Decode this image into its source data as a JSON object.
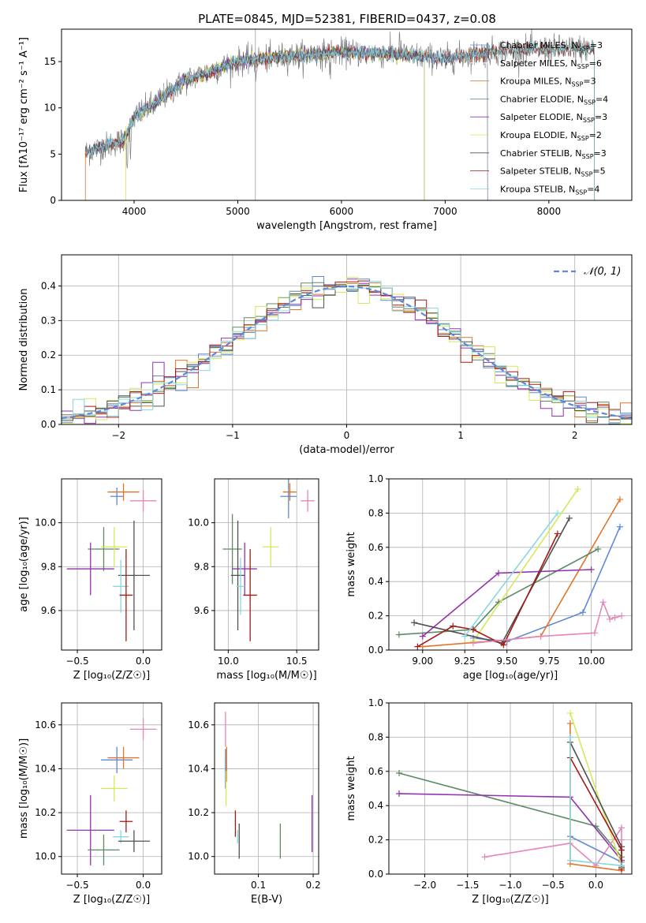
{
  "colors": {
    "chabrier_miles": "#5f89d6",
    "salpeter_miles": "#ffffff",
    "kroupa_miles": "#e0762a",
    "chabrier_elodie": "#5b8a63",
    "salpeter_elodie": "#9332b0",
    "kroupa_elodie": "#d5e85a",
    "chabrier_stelib": "#505050",
    "salpeter_stelib": "#a51a14",
    "kroupa_stelib": "#88d8df",
    "kroupa_extra": "#e587b8"
  },
  "chart_data": [
    {
      "type": "line",
      "title": "PLATE=0845, MJD=52381, FIBERID=0437, z=0.08",
      "xlabel": "wavelength [Angstrom, rest frame]",
      "ylabel": "Flux [fλ10⁻¹⁷ erg cm⁻² s⁻¹ A⁻¹]",
      "xlim": [
        3300,
        8800
      ],
      "ylim": [
        0,
        18.5
      ],
      "xticks": [
        "4000",
        "5000",
        "6000",
        "7000",
        "8000"
      ],
      "yticks": [
        "0",
        "5",
        "10",
        "15"
      ],
      "legend_position": "right",
      "legend": [
        {
          "label": "Chabrier MILES, N",
          "sub": "SSP",
          "suffix": "=3"
        },
        {
          "label": "Salpeter MILES, N",
          "sub": "SSP",
          "suffix": "=6"
        },
        {
          "label": "Kroupa MILES, N",
          "sub": "SSP",
          "suffix": "=3"
        },
        {
          "label": "Chabrier ELODIE, N",
          "sub": "SSP",
          "suffix": "=4"
        },
        {
          "label": "Salpeter ELODIE, N",
          "sub": "SSP",
          "suffix": "=3"
        },
        {
          "label": "Kroupa ELODIE, N",
          "sub": "SSP",
          "suffix": "=2"
        },
        {
          "label": "Chabrier STELIB, N",
          "sub": "SSP",
          "suffix": "=3"
        },
        {
          "label": "Salpeter STELIB, N",
          "sub": "SSP",
          "suffix": "=5"
        },
        {
          "label": "Kroupa STELIB, N",
          "sub": "SSP",
          "suffix": "=4"
        }
      ],
      "continuum": {
        "x": [
          3550,
          3700,
          3900,
          4000,
          4200,
          4500,
          5000,
          5500,
          6000,
          6500,
          7000,
          7400,
          7600,
          8200
        ],
        "y": [
          5.2,
          5.8,
          6.5,
          9.0,
          10.5,
          13.0,
          15.0,
          15.6,
          16.0,
          15.8,
          15.3,
          16.0,
          16.2,
          16.4
        ]
      }
    },
    {
      "type": "line",
      "xlabel": "(data-model)/error",
      "ylabel": "Normed distribution",
      "xlim": [
        -2.5,
        2.5
      ],
      "ylim": [
        0,
        0.49
      ],
      "xticks": [
        "−2",
        "−1",
        "0",
        "1",
        "2"
      ],
      "yticks": [
        "0.0",
        "0.1",
        "0.2",
        "0.3",
        "0.4"
      ],
      "legend_position": "top-right",
      "legend_label": "𝒩(0, 1)",
      "bin_width": 0.1
    },
    {
      "type": "scatter",
      "xlabel": "Z [log₁₀(Z/Z☉)]",
      "ylabel": "age  [log₁₀(age/yr)]",
      "xlim": [
        -0.62,
        0.14
      ],
      "ylim": [
        9.42,
        10.2
      ],
      "xticks": [
        "−0.5",
        "0.0"
      ],
      "yticks": [
        "9.6",
        "9.8",
        "10.0"
      ],
      "points": [
        {
          "c": "chabrier_miles",
          "x": -0.2,
          "xe": 0.05,
          "y": 10.12,
          "ye": 0.04
        },
        {
          "c": "kroupa_miles",
          "x": -0.15,
          "xe": 0.12,
          "y": 10.14,
          "ye": 0.04
        },
        {
          "c": "kroupa_extra",
          "x": 0.0,
          "xe": 0.1,
          "y": 10.1,
          "ye": 0.05
        },
        {
          "c": "chabrier_elodie",
          "x": -0.3,
          "xe": 0.12,
          "y": 9.88,
          "ye": 0.1
        },
        {
          "c": "kroupa_elodie",
          "x": -0.22,
          "xe": 0.1,
          "y": 9.89,
          "ye": 0.09
        },
        {
          "c": "salpeter_elodie",
          "x": -0.4,
          "xe": 0.18,
          "y": 9.79,
          "ye": 0.12
        },
        {
          "c": "chabrier_stelib",
          "x": -0.07,
          "xe": 0.12,
          "y": 9.76,
          "ye": 0.25
        },
        {
          "c": "kroupa_stelib",
          "x": -0.17,
          "xe": 0.06,
          "y": 9.71,
          "ye": 0.12
        },
        {
          "c": "salpeter_stelib",
          "x": -0.13,
          "xe": 0.05,
          "y": 9.67,
          "ye": 0.21
        }
      ]
    },
    {
      "type": "scatter",
      "xlabel": "mass [log₁₀(M/M☉)]",
      "xlim": [
        9.9,
        10.66
      ],
      "ylim": [
        9.42,
        10.2
      ],
      "xticks": [
        "10.0",
        "10.5"
      ],
      "yticks": [
        "9.6",
        "9.8",
        "10.0"
      ],
      "points": [
        {
          "c": "kroupa_miles",
          "x": 10.45,
          "xe": 0.05,
          "y": 10.14,
          "ye": 0.04
        },
        {
          "c": "chabrier_miles",
          "x": 10.44,
          "xe": 0.06,
          "y": 10.12,
          "ye": 0.1
        },
        {
          "c": "kroupa_extra",
          "x": 10.58,
          "xe": 0.05,
          "y": 10.1,
          "ye": 0.05
        },
        {
          "c": "chabrier_elodie",
          "x": 10.03,
          "xe": 0.07,
          "y": 9.88,
          "ye": 0.16
        },
        {
          "c": "kroupa_elodie",
          "x": 10.31,
          "xe": 0.06,
          "y": 9.89,
          "ye": 0.09
        },
        {
          "c": "salpeter_elodie",
          "x": 10.12,
          "xe": 0.09,
          "y": 9.79,
          "ye": 0.12
        },
        {
          "c": "chabrier_stelib",
          "x": 10.07,
          "xe": 0.05,
          "y": 9.76,
          "ye": 0.25
        },
        {
          "c": "kroupa_stelib",
          "x": 10.09,
          "xe": 0.03,
          "y": 9.71,
          "ye": 0.13
        },
        {
          "c": "salpeter_stelib",
          "x": 10.16,
          "xe": 0.05,
          "y": 9.67,
          "ye": 0.21
        }
      ]
    },
    {
      "type": "line",
      "xlabel": "age  [log₁₀(age/yr)]",
      "ylabel": "mass weight",
      "xlim": [
        8.8,
        10.24
      ],
      "ylim": [
        0,
        1.0
      ],
      "xticks": [
        "9.00",
        "9.25",
        "9.50",
        "9.75",
        "10.00"
      ],
      "yticks": [
        "0.0",
        "0.2",
        "0.4",
        "0.6",
        "0.8",
        "1.0"
      ],
      "series": [
        {
          "c": "chabrier_miles",
          "x": [
            9.3,
            9.5,
            9.95,
            10.17
          ],
          "y": [
            0.07,
            0.05,
            0.22,
            0.72
          ]
        },
        {
          "c": "kroupa_miles",
          "x": [
            9.0,
            9.5,
            9.7,
            10.17
          ],
          "y": [
            0.02,
            0.06,
            0.08,
            0.88
          ]
        },
        {
          "c": "chabrier_elodie",
          "x": [
            8.86,
            9.3,
            9.45,
            10.04
          ],
          "y": [
            0.09,
            0.12,
            0.28,
            0.59
          ]
        },
        {
          "c": "salpeter_elodie",
          "x": [
            9.0,
            9.45,
            10.0
          ],
          "y": [
            0.08,
            0.45,
            0.47
          ]
        },
        {
          "c": "kroupa_elodie",
          "x": [
            9.3,
            9.92
          ],
          "y": [
            0.05,
            0.94
          ]
        },
        {
          "c": "chabrier_stelib",
          "x": [
            8.95,
            9.47,
            9.87
          ],
          "y": [
            0.16,
            0.04,
            0.77
          ]
        },
        {
          "c": "salpeter_stelib",
          "x": [
            8.97,
            9.18,
            9.3,
            9.48,
            9.8
          ],
          "y": [
            0.02,
            0.14,
            0.12,
            0.03,
            0.68
          ]
        },
        {
          "c": "kroupa_stelib",
          "x": [
            9.25,
            9.8
          ],
          "y": [
            0.08,
            0.8
          ]
        },
        {
          "c": "kroupa_extra",
          "x": [
            9.3,
            9.7,
            10.02,
            10.07,
            10.11,
            10.14,
            10.18
          ],
          "y": [
            0.04,
            0.08,
            0.1,
            0.28,
            0.18,
            0.19,
            0.2
          ]
        }
      ]
    },
    {
      "type": "scatter",
      "xlabel": "Z [log₁₀(Z/Z☉)]",
      "ylabel": "mass [log₁₀(M/M☉)]",
      "xlim": [
        -0.62,
        0.14
      ],
      "ylim": [
        9.92,
        10.7
      ],
      "xticks": [
        "−0.5",
        "0.0"
      ],
      "yticks": [
        "10.0",
        "10.2",
        "10.4",
        "10.6"
      ],
      "points": [
        {
          "c": "kroupa_extra",
          "x": 0.0,
          "xe": 0.1,
          "y": 10.58,
          "ye": 0.05
        },
        {
          "c": "chabrier_miles",
          "x": -0.2,
          "xe": 0.12,
          "y": 10.44,
          "ye": 0.06
        },
        {
          "c": "kroupa_miles",
          "x": -0.15,
          "xe": 0.12,
          "y": 10.45,
          "ye": 0.05
        },
        {
          "c": "kroupa_elodie",
          "x": -0.22,
          "xe": 0.1,
          "y": 10.31,
          "ye": 0.06
        },
        {
          "c": "salpeter_elodie",
          "x": -0.4,
          "xe": 0.18,
          "y": 10.12,
          "ye": 0.16
        },
        {
          "c": "salpeter_stelib",
          "x": -0.13,
          "xe": 0.05,
          "y": 10.16,
          "ye": 0.05
        },
        {
          "c": "kroupa_stelib",
          "x": -0.17,
          "xe": 0.06,
          "y": 10.09,
          "ye": 0.03
        },
        {
          "c": "chabrier_stelib",
          "x": -0.07,
          "xe": 0.12,
          "y": 10.07,
          "ye": 0.05
        },
        {
          "c": "chabrier_elodie",
          "x": -0.3,
          "xe": 0.12,
          "y": 10.03,
          "ye": 0.07
        }
      ]
    },
    {
      "type": "scatter",
      "xlabel": "E(B-V)",
      "xlim": [
        0.02,
        0.21
      ],
      "ylim": [
        9.92,
        10.7
      ],
      "xticks": [
        "0.1",
        "0.2"
      ],
      "yticks": [
        "10.0",
        "10.2",
        "10.4",
        "10.6"
      ],
      "points": [
        {
          "c": "kroupa_extra",
          "x": 0.04,
          "xe": 0,
          "y": 10.58,
          "ye": 0.08
        },
        {
          "c": "chabrier_miles",
          "x": 0.04,
          "xe": 0,
          "y": 10.4,
          "ye": 0.09
        },
        {
          "c": "kroupa_miles",
          "x": 0.042,
          "xe": 0,
          "y": 10.42,
          "ye": 0.08
        },
        {
          "c": "kroupa_elodie",
          "x": 0.041,
          "xe": 0,
          "y": 10.31,
          "ye": 0.08
        },
        {
          "c": "salpeter_stelib",
          "x": 0.058,
          "xe": 0,
          "y": 10.15,
          "ye": 0.06
        },
        {
          "c": "kroupa_stelib",
          "x": 0.062,
          "xe": 0,
          "y": 10.09,
          "ye": 0.03
        },
        {
          "c": "chabrier_stelib",
          "x": 0.065,
          "xe": 0,
          "y": 10.07,
          "ye": 0.08
        },
        {
          "c": "chabrier_elodie",
          "x": 0.14,
          "xe": 0,
          "y": 10.07,
          "ye": 0.08
        },
        {
          "c": "salpeter_elodie",
          "x": 0.198,
          "xe": 0,
          "y": 10.15,
          "ye": 0.13
        }
      ]
    },
    {
      "type": "line",
      "xlabel": "Z [log₁₀(Z/Z☉)]",
      "ylabel": "mass weight",
      "xlim": [
        -2.42,
        0.42
      ],
      "ylim": [
        0,
        1.0
      ],
      "xticks": [
        "−2.0",
        "−1.5",
        "−1.0",
        "−0.5",
        "0.0"
      ],
      "yticks": [
        "0.0",
        "0.2",
        "0.4",
        "0.6",
        "0.8",
        "1.0"
      ],
      "series": [
        {
          "c": "chabrier_elodie",
          "x": [
            -2.3,
            0.0,
            0.3
          ],
          "y": [
            0.59,
            0.28,
            0.1
          ]
        },
        {
          "c": "salpeter_elodie",
          "x": [
            -2.3,
            -0.3,
            0.3
          ],
          "y": [
            0.47,
            0.45,
            0.08
          ]
        },
        {
          "c": "kroupa_extra",
          "x": [
            -1.3,
            -0.3,
            0.0,
            0.3,
            0.3,
            0.3
          ],
          "y": [
            0.1,
            0.18,
            0.05,
            0.27,
            0.2,
            0.04
          ]
        },
        {
          "c": "chabrier_miles",
          "x": [
            -0.3,
            0.3,
            0.3
          ],
          "y": [
            0.22,
            0.07,
            0.05
          ]
        },
        {
          "c": "kroupa_miles",
          "x": [
            -0.3,
            -0.3,
            0.3
          ],
          "y": [
            0.88,
            0.06,
            0.02
          ]
        },
        {
          "c": "kroupa_elodie",
          "x": [
            -0.3,
            0.3
          ],
          "y": [
            0.94,
            0.05
          ]
        },
        {
          "c": "chabrier_stelib",
          "x": [
            -0.3,
            0.3,
            0.3
          ],
          "y": [
            0.77,
            0.16,
            0.04
          ]
        },
        {
          "c": "salpeter_stelib",
          "x": [
            -0.3,
            0.3,
            0.3
          ],
          "y": [
            0.68,
            0.14,
            0.03
          ]
        },
        {
          "c": "kroupa_stelib",
          "x": [
            -0.3,
            -0.3,
            0.3
          ],
          "y": [
            0.8,
            0.08,
            0.05
          ]
        }
      ]
    }
  ]
}
